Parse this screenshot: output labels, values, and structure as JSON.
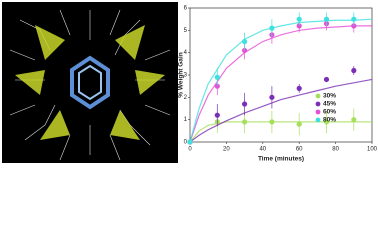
{
  "chart_data": {
    "type": "scatter",
    "xlabel": "Time (minutes)",
    "ylabel": "% Weight Gain",
    "xlim": [
      0,
      100
    ],
    "xticks": [
      0,
      20,
      40,
      60,
      80,
      100
    ],
    "ylim": [
      0,
      6
    ],
    "yticks": [
      0,
      1,
      2,
      3,
      4,
      5,
      6
    ],
    "x": [
      0,
      15,
      30,
      45,
      60,
      75,
      90
    ],
    "fit_x": [
      0,
      5,
      10,
      20,
      30,
      40,
      50,
      60,
      70,
      80,
      90,
      100
    ],
    "legend": "right",
    "series": [
      {
        "name": "30%",
        "color": "#a6e05a",
        "values": [
          0,
          0.9,
          0.9,
          0.9,
          0.8,
          0.9,
          1.0
        ],
        "errors": [
          0,
          0.5,
          0.5,
          0.5,
          0.5,
          0.5,
          0.5
        ],
        "fit": [
          0,
          0.5,
          0.75,
          0.9,
          0.9,
          0.9,
          0.9,
          0.9,
          0.9,
          0.9,
          0.9,
          0.9
        ]
      },
      {
        "name": "45%",
        "color": "#7b2fb5",
        "values": [
          0,
          1.2,
          1.7,
          2.0,
          2.4,
          2.8,
          3.2
        ],
        "errors": [
          0,
          0.5,
          0.5,
          0.5,
          0.2,
          0.1,
          0.2
        ],
        "fit": [
          0,
          0.3,
          0.55,
          0.95,
          1.3,
          1.6,
          1.9,
          2.1,
          2.3,
          2.5,
          2.65,
          2.8
        ]
      },
      {
        "name": "60%",
        "color": "#e64fd6",
        "values": [
          0,
          2.5,
          4.1,
          4.8,
          5.2,
          5.3,
          5.2
        ],
        "errors": [
          0,
          0.4,
          0.4,
          0.4,
          0.3,
          0.3,
          0.3
        ],
        "fit": [
          0,
          1.2,
          2.1,
          3.3,
          4.0,
          4.5,
          4.8,
          5.0,
          5.1,
          5.15,
          5.2,
          5.2
        ]
      },
      {
        "name": "80%",
        "color": "#3ee0e0",
        "values": [
          0,
          2.9,
          4.5,
          5.1,
          5.5,
          5.5,
          5.5
        ],
        "errors": [
          0,
          0.4,
          0.4,
          0.4,
          0.3,
          0.3,
          0.3
        ],
        "fit": [
          0,
          1.5,
          2.6,
          3.9,
          4.6,
          5.0,
          5.2,
          5.35,
          5.4,
          5.45,
          5.45,
          5.5
        ]
      }
    ]
  }
}
